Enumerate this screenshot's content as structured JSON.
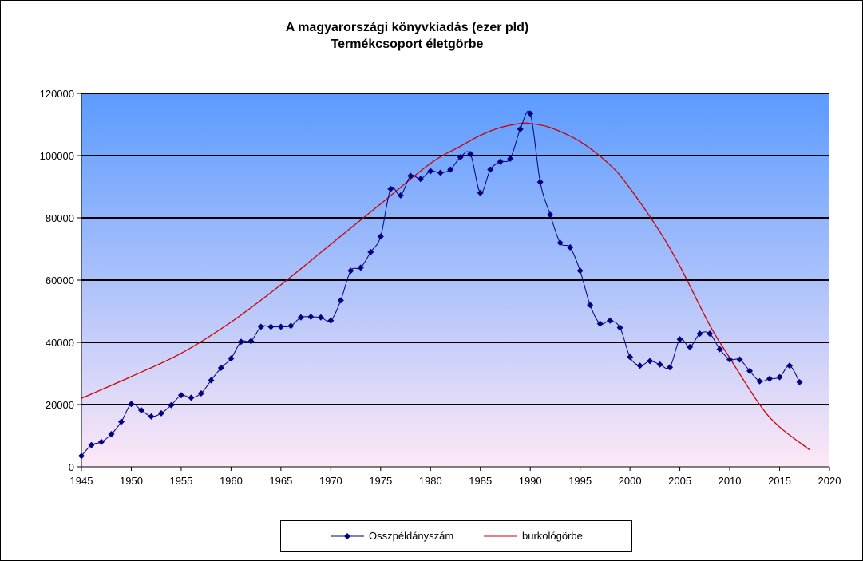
{
  "chart_data": {
    "type": "line",
    "title_line1": "A magyarországi könyvkiadás (ezer pld)",
    "title_line2": "Termékcsoport életgörbe",
    "xlim": [
      1945,
      2020
    ],
    "ylim": [
      0,
      120000
    ],
    "x_ticks": [
      "1945",
      "1950",
      "1955",
      "1960",
      "1965",
      "1970",
      "1975",
      "1980",
      "1985",
      "1990",
      "1995",
      "2000",
      "2005",
      "2010",
      "2015",
      "2020"
    ],
    "y_ticks": [
      "0",
      "20000",
      "40000",
      "60000",
      "80000",
      "100000",
      "120000"
    ],
    "grid": true,
    "legend_position": "bottom",
    "colors": {
      "series1": "#000080",
      "series2": "#cc0000",
      "bg_top": "#5b9bff",
      "bg_bottom": "#fde8f6"
    },
    "series": [
      {
        "name": "Összpéldányszám",
        "x": [
          1945,
          1946,
          1947,
          1948,
          1949,
          1950,
          1951,
          1952,
          1953,
          1954,
          1955,
          1956,
          1957,
          1958,
          1959,
          1960,
          1961,
          1962,
          1963,
          1964,
          1965,
          1966,
          1967,
          1968,
          1969,
          1970,
          1971,
          1972,
          1973,
          1974,
          1975,
          1976,
          1977,
          1978,
          1979,
          1980,
          1981,
          1982,
          1983,
          1984,
          1985,
          1986,
          1987,
          1988,
          1989,
          1990,
          1991,
          1992,
          1993,
          1994,
          1995,
          1996,
          1997,
          1998,
          1999,
          2000,
          2001,
          2002,
          2003,
          2004,
          2005,
          2006,
          2007,
          2008,
          2009,
          2010,
          2011,
          2012,
          2013,
          2014,
          2015,
          2016,
          2017
        ],
        "values": [
          3500,
          7000,
          8000,
          10500,
          14500,
          20200,
          18200,
          16200,
          17200,
          19800,
          23000,
          22200,
          23600,
          27800,
          31800,
          34800,
          40200,
          40400,
          45000,
          45000,
          45000,
          45300,
          48000,
          48200,
          48000,
          47000,
          53500,
          63000,
          64000,
          69000,
          74000,
          89300,
          87200,
          93500,
          92500,
          95000,
          94500,
          95500,
          99500,
          100500,
          88000,
          95500,
          98000,
          99000,
          108500,
          113500,
          91500,
          81000,
          72000,
          70500,
          63000,
          52000,
          46000,
          47000,
          44700,
          35300,
          32500,
          34000,
          32900,
          32000,
          41000,
          38500,
          42800,
          42800,
          37800,
          34500,
          34500,
          30800,
          27500,
          28300,
          28800,
          32500,
          27200
        ]
      },
      {
        "name": "burkológörbe",
        "x": [
          1945,
          1950,
          1955,
          1960,
          1965,
          1970,
          1975,
          1980,
          1983,
          1985,
          1987,
          1989,
          1990,
          1992,
          1995,
          1998,
          2000,
          2003,
          2005,
          2008,
          2010,
          2013,
          2015,
          2018
        ],
        "values": [
          22000,
          29000,
          36500,
          46500,
          58500,
          71500,
          84500,
          97500,
          103000,
          106500,
          109000,
          110300,
          110300,
          109000,
          104500,
          97000,
          89500,
          75500,
          64500,
          45500,
          35000,
          20000,
          12800,
          5500
        ]
      }
    ]
  }
}
